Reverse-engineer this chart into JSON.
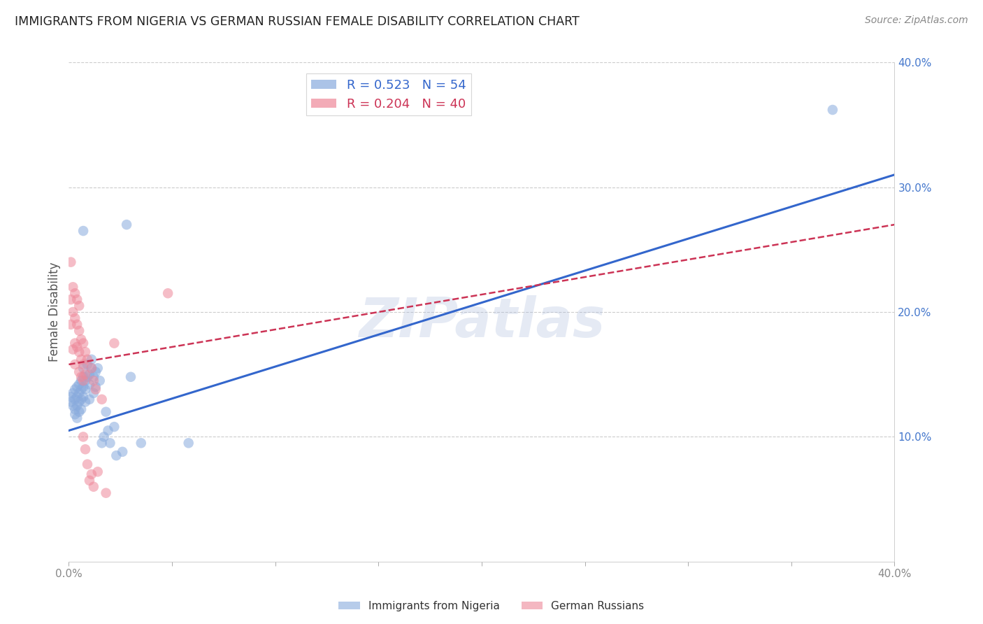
{
  "title": "IMMIGRANTS FROM NIGERIA VS GERMAN RUSSIAN FEMALE DISABILITY CORRELATION CHART",
  "source": "Source: ZipAtlas.com",
  "ylabel": "Female Disability",
  "watermark": "ZIPatlas",
  "xlim": [
    0.0,
    0.4
  ],
  "ylim": [
    0.0,
    0.4
  ],
  "blue_R": 0.523,
  "blue_N": 54,
  "pink_R": 0.204,
  "pink_N": 40,
  "legend_label_blue": "Immigrants from Nigeria",
  "legend_label_pink": "German Russians",
  "blue_color": "#88aadd",
  "pink_color": "#ee8899",
  "blue_line_color": "#3366cc",
  "pink_line_color": "#cc3355",
  "blue_scatter": [
    [
      0.001,
      0.132
    ],
    [
      0.001,
      0.128
    ],
    [
      0.002,
      0.135
    ],
    [
      0.002,
      0.125
    ],
    [
      0.003,
      0.138
    ],
    [
      0.003,
      0.13
    ],
    [
      0.003,
      0.122
    ],
    [
      0.003,
      0.118
    ],
    [
      0.004,
      0.14
    ],
    [
      0.004,
      0.132
    ],
    [
      0.004,
      0.125
    ],
    [
      0.004,
      0.115
    ],
    [
      0.005,
      0.142
    ],
    [
      0.005,
      0.135
    ],
    [
      0.005,
      0.128
    ],
    [
      0.005,
      0.12
    ],
    [
      0.006,
      0.145
    ],
    [
      0.006,
      0.138
    ],
    [
      0.006,
      0.13
    ],
    [
      0.006,
      0.122
    ],
    [
      0.007,
      0.148
    ],
    [
      0.007,
      0.14
    ],
    [
      0.007,
      0.132
    ],
    [
      0.007,
      0.155
    ],
    [
      0.007,
      0.265
    ],
    [
      0.008,
      0.145
    ],
    [
      0.008,
      0.138
    ],
    [
      0.008,
      0.128
    ],
    [
      0.009,
      0.148
    ],
    [
      0.009,
      0.158
    ],
    [
      0.01,
      0.15
    ],
    [
      0.01,
      0.142
    ],
    [
      0.01,
      0.13
    ],
    [
      0.011,
      0.155
    ],
    [
      0.011,
      0.162
    ],
    [
      0.012,
      0.148
    ],
    [
      0.012,
      0.135
    ],
    [
      0.013,
      0.152
    ],
    [
      0.013,
      0.14
    ],
    [
      0.014,
      0.155
    ],
    [
      0.015,
      0.145
    ],
    [
      0.016,
      0.095
    ],
    [
      0.017,
      0.1
    ],
    [
      0.018,
      0.12
    ],
    [
      0.019,
      0.105
    ],
    [
      0.02,
      0.095
    ],
    [
      0.022,
      0.108
    ],
    [
      0.023,
      0.085
    ],
    [
      0.026,
      0.088
    ],
    [
      0.028,
      0.27
    ],
    [
      0.03,
      0.148
    ],
    [
      0.035,
      0.095
    ],
    [
      0.058,
      0.095
    ],
    [
      0.37,
      0.362
    ]
  ],
  "pink_scatter": [
    [
      0.001,
      0.24
    ],
    [
      0.001,
      0.21
    ],
    [
      0.001,
      0.19
    ],
    [
      0.002,
      0.22
    ],
    [
      0.002,
      0.2
    ],
    [
      0.002,
      0.17
    ],
    [
      0.003,
      0.215
    ],
    [
      0.003,
      0.195
    ],
    [
      0.003,
      0.175
    ],
    [
      0.003,
      0.158
    ],
    [
      0.004,
      0.21
    ],
    [
      0.004,
      0.19
    ],
    [
      0.004,
      0.172
    ],
    [
      0.005,
      0.205
    ],
    [
      0.005,
      0.185
    ],
    [
      0.005,
      0.168
    ],
    [
      0.005,
      0.152
    ],
    [
      0.006,
      0.178
    ],
    [
      0.006,
      0.162
    ],
    [
      0.006,
      0.148
    ],
    [
      0.007,
      0.175
    ],
    [
      0.007,
      0.158
    ],
    [
      0.007,
      0.145
    ],
    [
      0.007,
      0.1
    ],
    [
      0.008,
      0.168
    ],
    [
      0.008,
      0.15
    ],
    [
      0.008,
      0.09
    ],
    [
      0.009,
      0.162
    ],
    [
      0.009,
      0.078
    ],
    [
      0.01,
      0.065
    ],
    [
      0.011,
      0.155
    ],
    [
      0.011,
      0.07
    ],
    [
      0.012,
      0.145
    ],
    [
      0.012,
      0.06
    ],
    [
      0.013,
      0.138
    ],
    [
      0.014,
      0.072
    ],
    [
      0.016,
      0.13
    ],
    [
      0.018,
      0.055
    ],
    [
      0.022,
      0.175
    ],
    [
      0.048,
      0.215
    ]
  ],
  "blue_line_x": [
    0.0,
    0.4
  ],
  "blue_line_y": [
    0.105,
    0.31
  ],
  "pink_line_x": [
    0.0,
    0.4
  ],
  "pink_line_y": [
    0.158,
    0.27
  ],
  "background_color": "#ffffff",
  "grid_color": "#cccccc",
  "title_color": "#222222",
  "tick_label_color": "#4477cc"
}
